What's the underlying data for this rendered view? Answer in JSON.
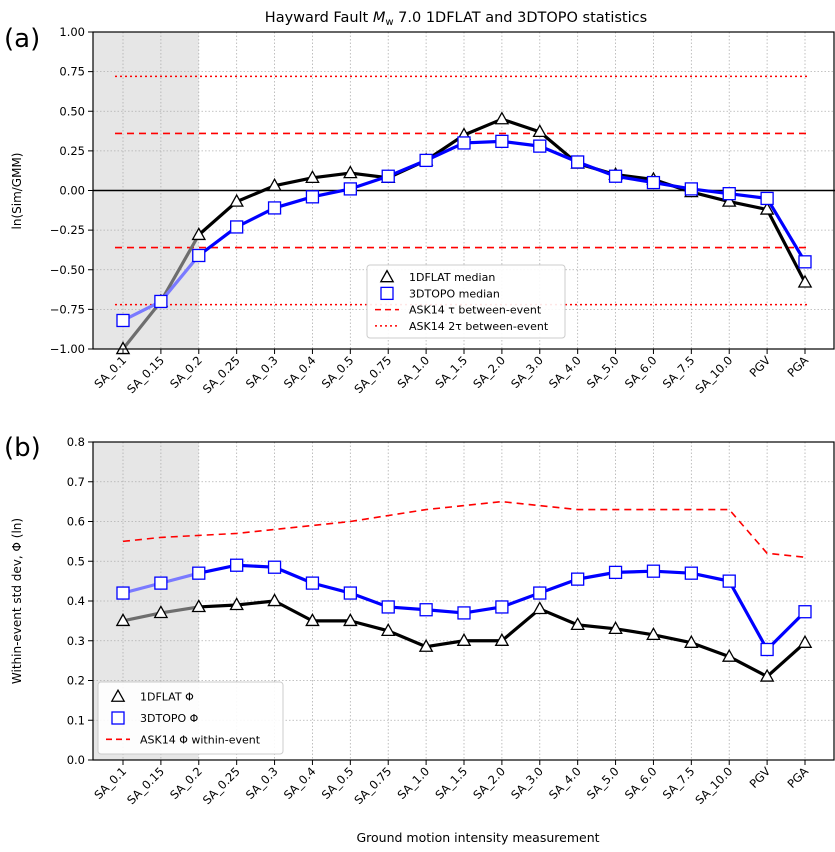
{
  "chart_data": [
    {
      "type": "line",
      "panel_label": "(a)",
      "title_prefix": "Hayward Fault ",
      "title_M": "M",
      "title_sub": "w",
      "title_suffix": " 7.0 1DFLAT and 3DTOPO statistics",
      "ylabel": "ln(Sim/GMM)",
      "xlabel": "",
      "ylim": [
        -1.0,
        1.0
      ],
      "yticks": [
        -1.0,
        -0.75,
        -0.5,
        -0.25,
        0.0,
        0.25,
        0.5,
        0.75,
        1.0
      ],
      "ytick_labels": [
        "−1.00",
        "−0.75",
        "−0.50",
        "−0.25",
        "0.00",
        "0.25",
        "0.50",
        "0.75",
        "1.00"
      ],
      "categories": [
        "SA_0.1",
        "SA_0.15",
        "SA_0.2",
        "SA_0.25",
        "SA_0.3",
        "SA_0.4",
        "SA_0.5",
        "SA_0.75",
        "SA_1.0",
        "SA_1.5",
        "SA_2.0",
        "SA_3.0",
        "SA_4.0",
        "SA_5.0",
        "SA_6.0",
        "SA_7.5",
        "SA_10.0",
        "PGV",
        "PGA"
      ],
      "shaded_categories": [
        "SA_0.1",
        "SA_0.15",
        "SA_0.2"
      ],
      "grid": true,
      "legend_position": "lower-center",
      "series": [
        {
          "name": "1DFLAT median",
          "marker": "triangle",
          "color": "#000000",
          "values": [
            -1.0,
            -0.7,
            -0.28,
            -0.07,
            0.03,
            0.08,
            0.11,
            0.08,
            0.19,
            0.35,
            0.45,
            0.37,
            0.17,
            0.1,
            0.07,
            -0.01,
            -0.07,
            -0.12,
            -0.58
          ]
        },
        {
          "name": "3DTOPO median",
          "marker": "square",
          "color": "#0000ff",
          "values": [
            -0.82,
            -0.7,
            -0.41,
            -0.23,
            -0.11,
            -0.04,
            0.01,
            0.09,
            0.19,
            0.3,
            0.31,
            0.28,
            0.18,
            0.09,
            0.05,
            0.01,
            -0.02,
            -0.05,
            -0.45
          ]
        },
        {
          "name": "ASK14 τ between-event",
          "style": "dashed",
          "color": "#ff0000",
          "values_pm": 0.36
        },
        {
          "name": "ASK14 2τ between-event",
          "style": "dotted",
          "color": "#ff0000",
          "values_pm": 0.72
        }
      ]
    },
    {
      "type": "line",
      "panel_label": "(b)",
      "ylabel": "Within-event std dev, Φ (ln)",
      "xlabel": "Ground motion intensity measurement",
      "ylim": [
        0.0,
        0.8
      ],
      "yticks": [
        0.0,
        0.1,
        0.2,
        0.3,
        0.4,
        0.5,
        0.6,
        0.7,
        0.8
      ],
      "ytick_labels": [
        "0.0",
        "0.1",
        "0.2",
        "0.3",
        "0.4",
        "0.5",
        "0.6",
        "0.7",
        "0.8"
      ],
      "categories": [
        "SA_0.1",
        "SA_0.15",
        "SA_0.2",
        "SA_0.25",
        "SA_0.3",
        "SA_0.4",
        "SA_0.5",
        "SA_0.75",
        "SA_1.0",
        "SA_1.5",
        "SA_2.0",
        "SA_3.0",
        "SA_4.0",
        "SA_5.0",
        "SA_6.0",
        "SA_7.5",
        "SA_10.0",
        "PGV",
        "PGA"
      ],
      "shaded_categories": [
        "SA_0.1",
        "SA_0.15",
        "SA_0.2"
      ],
      "grid": true,
      "legend_position": "lower-left",
      "series": [
        {
          "name": "1DFLAT Φ",
          "marker": "triangle",
          "color": "#000000",
          "values": [
            0.35,
            0.37,
            0.385,
            0.39,
            0.4,
            0.35,
            0.35,
            0.325,
            0.285,
            0.3,
            0.3,
            0.38,
            0.34,
            0.33,
            0.315,
            0.295,
            0.26,
            0.21,
            0.295
          ]
        },
        {
          "name": "3DTOPO Φ",
          "marker": "square",
          "color": "#0000ff",
          "values": [
            0.42,
            0.445,
            0.47,
            0.49,
            0.485,
            0.445,
            0.42,
            0.385,
            0.378,
            0.37,
            0.385,
            0.42,
            0.455,
            0.472,
            0.475,
            0.47,
            0.45,
            0.278,
            0.373
          ]
        },
        {
          "name": "ASK14 Φ within-event",
          "style": "dashed",
          "color": "#ff0000",
          "values": [
            0.55,
            0.56,
            0.565,
            0.57,
            0.58,
            0.59,
            0.6,
            0.615,
            0.63,
            0.64,
            0.65,
            0.64,
            0.63,
            0.63,
            0.63,
            0.63,
            0.63,
            0.52,
            0.51
          ]
        }
      ]
    }
  ]
}
